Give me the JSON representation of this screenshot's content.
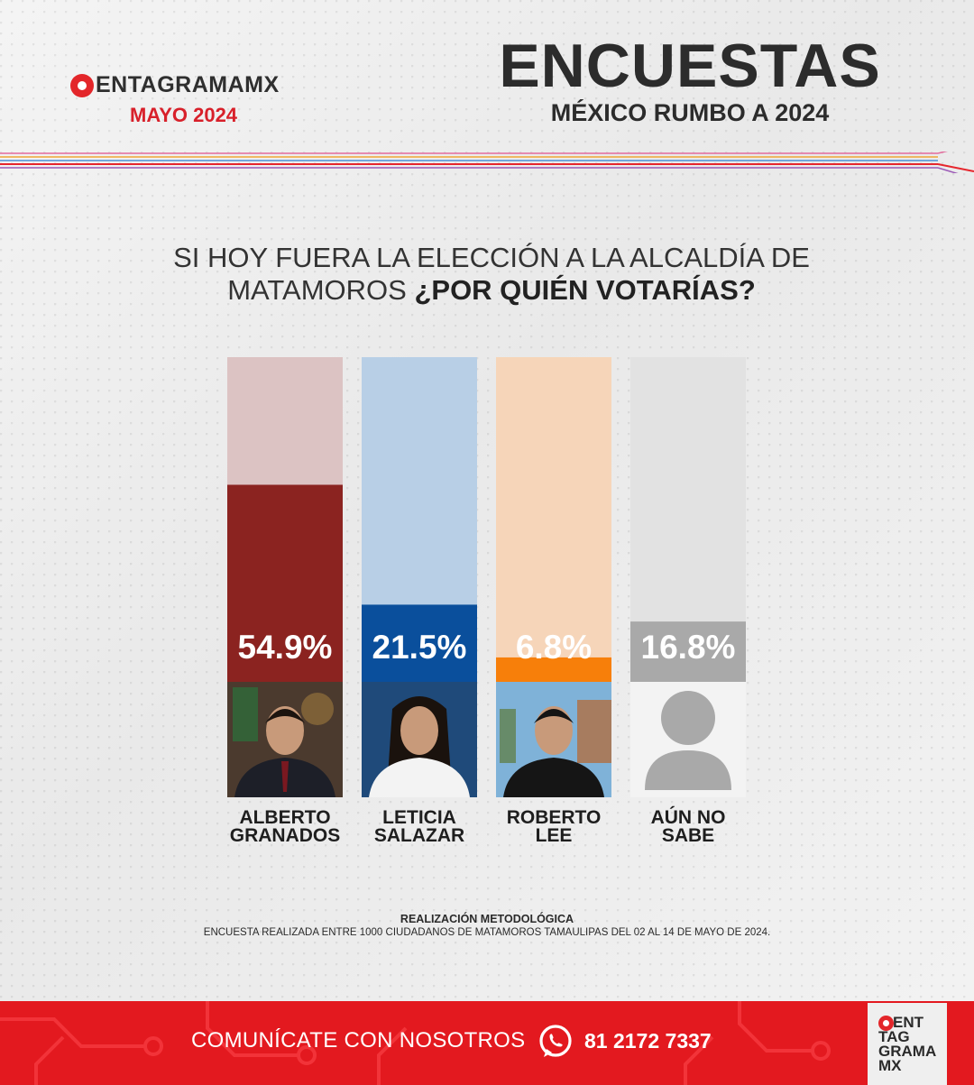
{
  "brand": {
    "name": "ENTAGRAMAMX",
    "date": "MAYO 2024"
  },
  "header": {
    "title": "ENCUESTAS",
    "subtitle": "MÉXICO RUMBO A 2024"
  },
  "question": {
    "line1": "SI HOY FUERA LA ELECCIÓN A LA ALCALDÍA DE",
    "line2_plain": "MATAMOROS",
    "line2_bold": "¿POR QUIÉN VOTARÍAS?"
  },
  "chart_data": {
    "type": "bar",
    "title": "SI HOY FUERA LA ELECCIÓN A LA ALCALDÍA DE MATAMOROS ¿POR QUIÉN VOTARÍAS?",
    "xlabel": "",
    "ylabel": "",
    "ylim": [
      0,
      100
    ],
    "grid": false,
    "categories": [
      "ALBERTO GRANADOS",
      "LETICIA SALAZAR",
      "ROBERTO LEE",
      "AÚN NO SABE"
    ],
    "values": [
      54.9,
      21.5,
      6.8,
      16.8
    ],
    "data_labels": [
      "54.9%",
      "21.5%",
      "6.8%",
      "16.8%"
    ],
    "name_lines": [
      [
        "ALBERTO",
        "GRANADOS"
      ],
      [
        "LETICIA",
        "SALAZAR"
      ],
      [
        "ROBERTO",
        "LEE"
      ],
      [
        "AÚN NO",
        "SABE"
      ]
    ],
    "colors": [
      "#8b2320",
      "#0a4f9c",
      "#f77f0a",
      "#a9a9a9"
    ],
    "track_colors": [
      "#dcc3c3",
      "#b8cfe6",
      "#f6d5b9",
      "#e2e2e2"
    ]
  },
  "methodology": {
    "title": "REALIZACIÓN METODOLÓGICA",
    "text": "ENCUESTA REALIZADA ENTRE 1000 CIUDADANOS DE MATAMOROS TAMAULIPAS DEL 02 AL 14 DE MAYO DE 2024."
  },
  "footer": {
    "contact_text": "COMUNÍCATE CON NOSOTROS",
    "phone": "81 2172 7337",
    "logo_lines": [
      "ENT",
      "TAG",
      "GRAMA",
      "MX"
    ],
    "icon": "whatsapp-icon"
  }
}
